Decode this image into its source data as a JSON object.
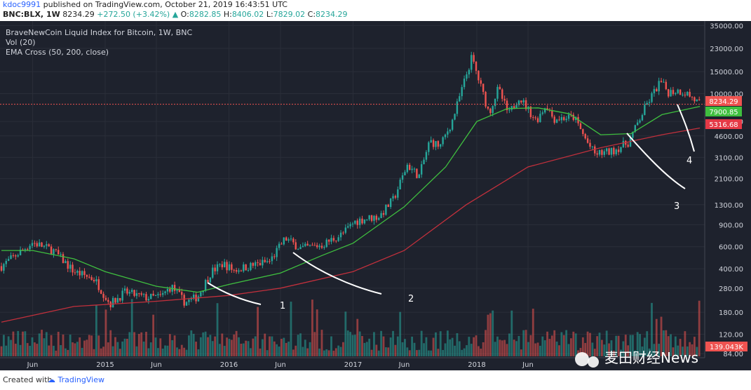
{
  "header": {
    "author": "kdoc9991",
    "published_text": "published on TradingView.com, October 21, 2019 16:43:51 UTC",
    "symbol": "BNC:BLX, 1W",
    "last": "8234.29",
    "change": "+272.50 (+3.42%)",
    "o_label": "O:",
    "o": "8282.85",
    "h_label": "H:",
    "h": "8406.02",
    "l_label": "L:",
    "l": "7829.02",
    "c_label": "C:",
    "c": "8234.29"
  },
  "legend": {
    "title": "BraveNewCoin Liquid Index for Bitcoin, 1W, BNC",
    "vol": "Vol (20)",
    "ema": "EMA Cross (50, 200, close)"
  },
  "price_tags": {
    "last": "8234.29",
    "ema_fast": "7900.85",
    "ema_slow": "5316.68",
    "volume": "139.043K"
  },
  "annotations": [
    "1",
    "2",
    "3",
    "4"
  ],
  "watermark": "麦田财经News",
  "footer": {
    "created": "Created with",
    "brand": "TradingView"
  },
  "colors": {
    "background": "#1e222d",
    "up": "#26a69a",
    "down": "#ef5350",
    "ema_fast": "#3fbf3f",
    "ema_slow": "#c2303c",
    "grid": "#2a2e39",
    "text": "#d1d4dc"
  },
  "chart_data": {
    "type": "candlestick",
    "title": "BraveNewCoin Liquid Index for Bitcoin, 1W, BNC",
    "y_scale": "log",
    "ylim": [
      80,
      38000
    ],
    "y_ticks": [
      35000,
      23000,
      15000,
      10000,
      6000,
      4600,
      3100,
      2100,
      1300,
      900,
      600,
      400,
      280,
      180,
      120,
      84
    ],
    "y_tick_labels": [
      "35000.00",
      "23000.00",
      "15000.00",
      "10000.00",
      "6000.00",
      "4600.00",
      "3100.00",
      "2100.00",
      "1300.00",
      "900.00",
      "600.00",
      "400.00",
      "280.00",
      "180.00",
      "120.00",
      "84.00"
    ],
    "x_ticks": [
      "Jun",
      "2015",
      "Jun",
      "2016",
      "Jun",
      "2017",
      "Jun",
      "2018",
      "Jun"
    ],
    "x_tick_dates": [
      "2014-06-01",
      "2015-01-01",
      "2015-06-01",
      "2016-01-01",
      "2016-06-01",
      "2017-01-01",
      "2017-06-01",
      "2018-01-01",
      "2018-06-01"
    ],
    "x_range": [
      "2014-03-01",
      "2019-10-31"
    ],
    "price_path": [
      [
        "2014-03-01",
        420
      ],
      [
        "2014-05-15",
        600
      ],
      [
        "2014-06-01",
        650
      ],
      [
        "2014-08-01",
        560
      ],
      [
        "2014-10-01",
        380
      ],
      [
        "2014-12-01",
        330
      ],
      [
        "2015-01-15",
        210
      ],
      [
        "2015-03-01",
        260
      ],
      [
        "2015-05-01",
        235
      ],
      [
        "2015-06-15",
        240
      ],
      [
        "2015-07-15",
        290
      ],
      [
        "2015-08-25",
        215
      ],
      [
        "2015-10-01",
        240
      ],
      [
        "2015-11-10",
        380
      ],
      [
        "2015-12-15",
        440
      ],
      [
        "2016-01-15",
        390
      ],
      [
        "2016-03-01",
        420
      ],
      [
        "2016-05-01",
        460
      ],
      [
        "2016-06-15",
        700
      ],
      [
        "2016-08-01",
        580
      ],
      [
        "2016-10-01",
        620
      ],
      [
        "2016-12-01",
        760
      ],
      [
        "2017-01-05",
        950
      ],
      [
        "2017-02-01",
        1000
      ],
      [
        "2017-03-20",
        1050
      ],
      [
        "2017-05-01",
        1450
      ],
      [
        "2017-06-10",
        2700
      ],
      [
        "2017-07-15",
        2200
      ],
      [
        "2017-08-15",
        4200
      ],
      [
        "2017-09-15",
        3800
      ],
      [
        "2017-10-20",
        6000
      ],
      [
        "2017-12-17",
        19500
      ],
      [
        "2018-02-06",
        7000
      ],
      [
        "2018-03-05",
        11000
      ],
      [
        "2018-04-05",
        6800
      ],
      [
        "2018-05-05",
        9500
      ],
      [
        "2018-06-25",
        6100
      ],
      [
        "2018-07-25",
        8200
      ],
      [
        "2018-08-15",
        6300
      ],
      [
        "2018-10-15",
        6500
      ],
      [
        "2018-11-20",
        4200
      ],
      [
        "2018-12-15",
        3300
      ],
      [
        "2019-02-01",
        3450
      ],
      [
        "2019-03-25",
        4100
      ],
      [
        "2019-05-15",
        8000
      ],
      [
        "2019-06-26",
        12500
      ],
      [
        "2019-07-20",
        10300
      ],
      [
        "2019-08-15",
        10600
      ],
      [
        "2019-09-10",
        10200
      ],
      [
        "2019-10-21",
        8234.29
      ]
    ],
    "series": [
      {
        "name": "EMA 50",
        "values": [
          [
            "2014-03-01",
            560
          ],
          [
            "2014-06-01",
            560
          ],
          [
            "2014-10-01",
            480
          ],
          [
            "2015-01-01",
            380
          ],
          [
            "2015-06-01",
            290
          ],
          [
            "2015-10-01",
            260
          ],
          [
            "2016-01-01",
            300
          ],
          [
            "2016-06-01",
            370
          ],
          [
            "2016-10-01",
            510
          ],
          [
            "2017-01-01",
            640
          ],
          [
            "2017-06-01",
            1250
          ],
          [
            "2017-10-01",
            2600
          ],
          [
            "2018-01-01",
            6000
          ],
          [
            "2018-04-01",
            7600
          ],
          [
            "2018-07-01",
            7700
          ],
          [
            "2018-10-01",
            6900
          ],
          [
            "2019-01-01",
            4700
          ],
          [
            "2019-04-01",
            4800
          ],
          [
            "2019-07-01",
            6800
          ],
          [
            "2019-10-21",
            7900.85
          ]
        ]
      },
      {
        "name": "EMA 200",
        "values": [
          [
            "2014-03-01",
            150
          ],
          [
            "2014-10-01",
            200
          ],
          [
            "2015-06-01",
            220
          ],
          [
            "2016-01-01",
            245
          ],
          [
            "2016-06-01",
            280
          ],
          [
            "2017-01-01",
            380
          ],
          [
            "2017-06-01",
            560
          ],
          [
            "2017-12-01",
            1300
          ],
          [
            "2018-06-01",
            2600
          ],
          [
            "2019-01-01",
            3700
          ],
          [
            "2019-07-01",
            4700
          ],
          [
            "2019-10-21",
            5316.68
          ]
        ]
      }
    ],
    "volume_last": "139.043K"
  }
}
